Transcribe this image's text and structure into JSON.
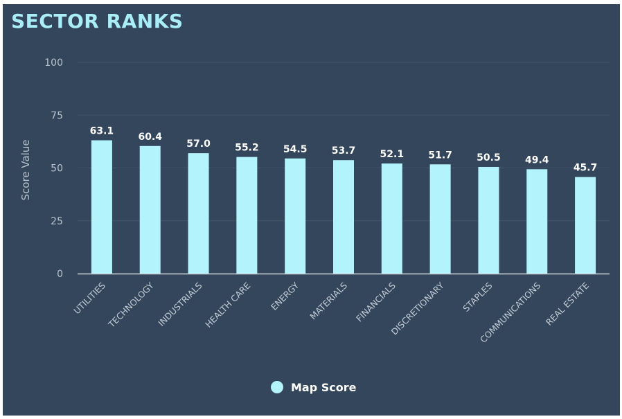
{
  "title": "SECTOR RANKS",
  "chart_data": {
    "type": "bar",
    "title": "SECTOR RANKS",
    "ylabel": "Score Value",
    "xlabel": "",
    "ylim": [
      0,
      100
    ],
    "yticks": [
      0,
      25,
      50,
      75,
      100
    ],
    "grid": true,
    "legend_position": "bottom",
    "bar_color": "#b3f3fc",
    "background_color": "#34465b",
    "categories": [
      "UTILITIES",
      "TECHNOLOGY",
      "INDUSTRIALS",
      "HEALTH CARE",
      "ENERGY",
      "MATERIALS",
      "FINANCIALS",
      "DISCRETIONARY",
      "STAPLES",
      "COMMUNICATIONS",
      "REAL ESTATE"
    ],
    "series": [
      {
        "name": "Map Score",
        "values": [
          63.1,
          60.4,
          57.0,
          55.2,
          54.5,
          53.7,
          52.1,
          51.7,
          50.5,
          49.4,
          45.7
        ]
      }
    ]
  }
}
